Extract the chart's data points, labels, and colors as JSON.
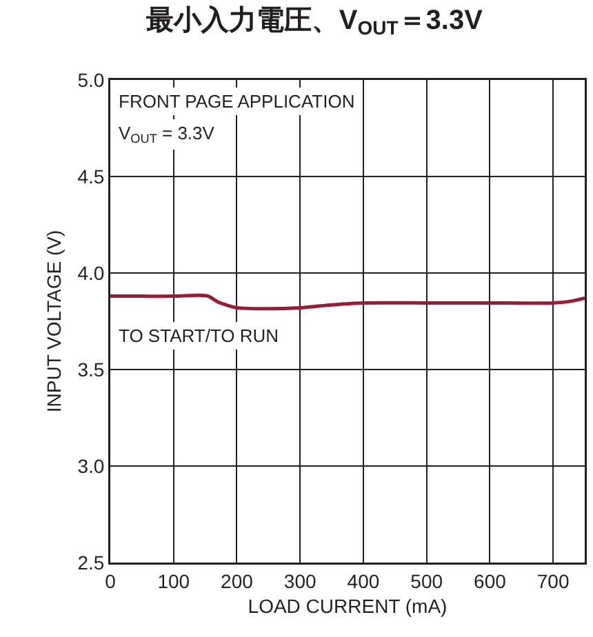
{
  "chart_data": {
    "type": "line",
    "title": "最小入力電圧、V$_{OUT}$＝3.3V",
    "xlabel": "LOAD CURRENT (mA)",
    "ylabel": "INPUT VOLTAGE (V)",
    "annotations": [
      "FRONT PAGE APPLICATION",
      "V$_{OUT}$ = 3.3V",
      "TO START/TO RUN"
    ],
    "x": [
      0,
      50,
      100,
      140,
      155,
      170,
      200,
      250,
      300,
      350,
      400,
      500,
      600,
      700,
      730,
      750
    ],
    "series": [
      {
        "color": "#9b1b35",
        "values": [
          3.88,
          3.88,
          3.88,
          3.885,
          3.88,
          3.85,
          3.82,
          3.815,
          3.82,
          3.835,
          3.845,
          3.845,
          3.845,
          3.845,
          3.855,
          3.87
        ]
      }
    ],
    "xlim": [
      0,
      750
    ],
    "xticks": [
      0,
      100,
      200,
      300,
      400,
      500,
      600,
      700
    ],
    "ylim": [
      2.5,
      5.0
    ],
    "yticks": [
      {
        "value": 2.5,
        "label": "2.5"
      },
      {
        "value": 3.0,
        "label": "3.0"
      },
      {
        "value": 3.5,
        "label": "3.5"
      },
      {
        "value": 4.0,
        "label": "4.0"
      },
      {
        "value": 4.5,
        "label": "4.5"
      },
      {
        "value": 5.0,
        "label": "5.0"
      }
    ],
    "grid": true,
    "line_style": "solid",
    "marker": "none"
  }
}
